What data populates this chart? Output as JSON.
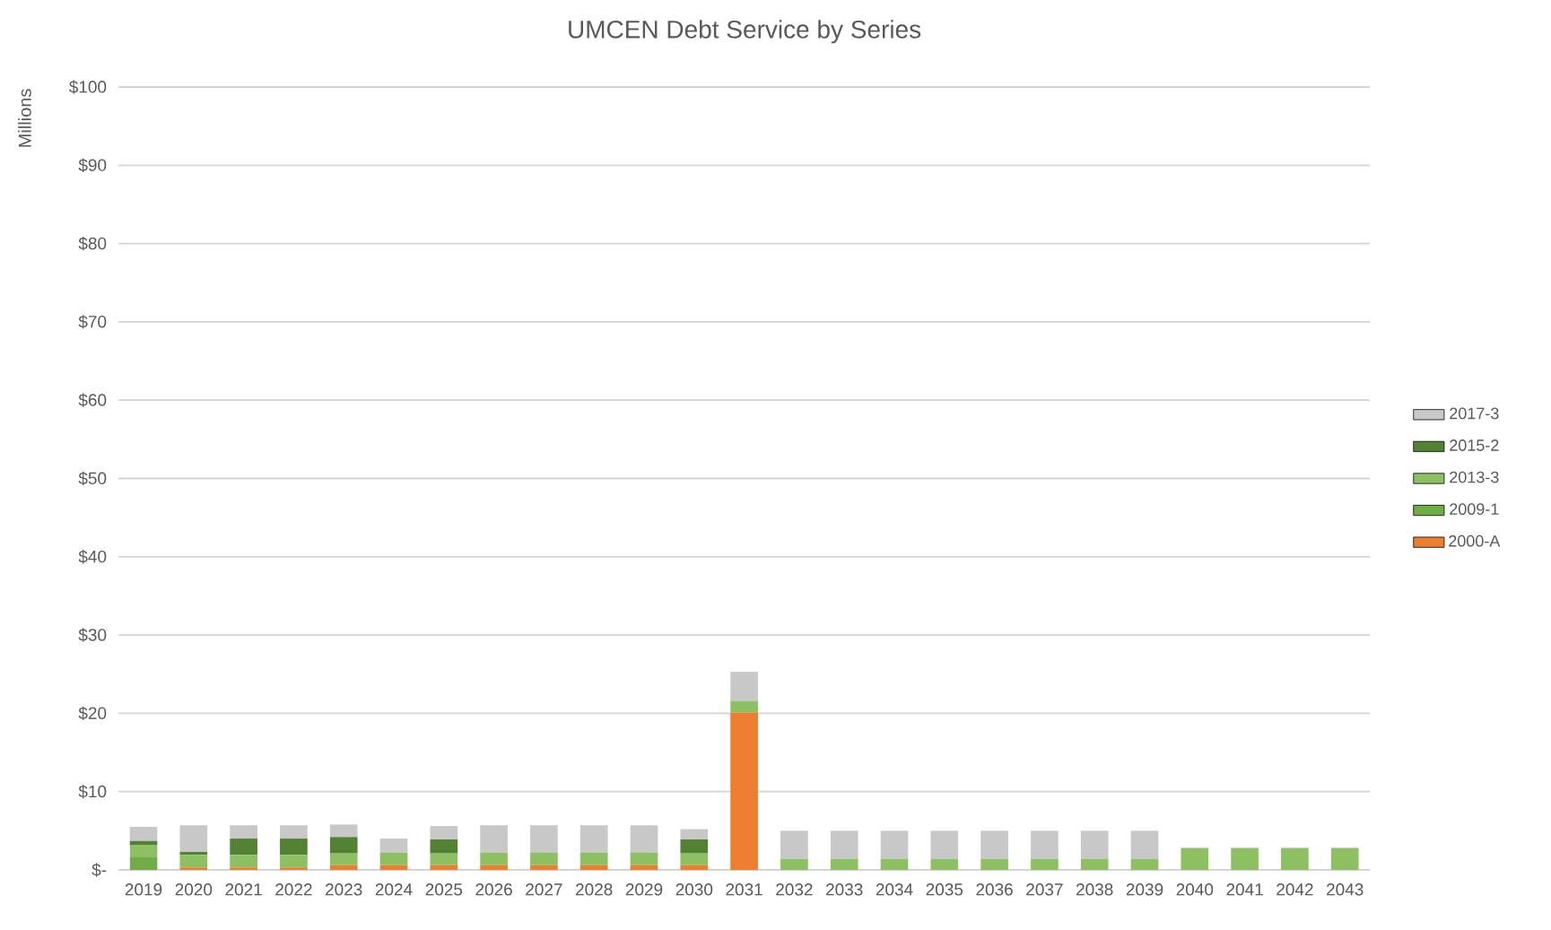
{
  "chart_data": {
    "type": "bar",
    "stacked": true,
    "title": "UMCEN Debt Service by Series",
    "ylabel": "Millions",
    "categories": [
      "2019",
      "2020",
      "2021",
      "2022",
      "2023",
      "2024",
      "2025",
      "2026",
      "2027",
      "2028",
      "2029",
      "2030",
      "2031",
      "2032",
      "2033",
      "2034",
      "2035",
      "2036",
      "2037",
      "2038",
      "2039",
      "2040",
      "2041",
      "2042",
      "2043"
    ],
    "series": [
      {
        "name": "2000-A",
        "color": "#ed7d31",
        "values": [
          0,
          0.3,
          0.3,
          0.3,
          0.6,
          0.6,
          0.6,
          0.6,
          0.6,
          0.6,
          0.6,
          0.6,
          20.1,
          0,
          0,
          0,
          0,
          0,
          0,
          0,
          0,
          0,
          0,
          0,
          0
        ]
      },
      {
        "name": "2009-1",
        "color": "#70ad47",
        "values": [
          1.7,
          0,
          0,
          0,
          0,
          0,
          0,
          0,
          0,
          0,
          0,
          0,
          0,
          0,
          0,
          0,
          0,
          0,
          0,
          0,
          0,
          0,
          0,
          0,
          0
        ]
      },
      {
        "name": "2013-3",
        "color": "#8dc063",
        "values": [
          1.5,
          1.6,
          1.6,
          1.6,
          1.5,
          1.6,
          1.5,
          1.6,
          1.6,
          1.6,
          1.6,
          1.5,
          1.5,
          1.4,
          1.4,
          1.4,
          1.4,
          1.4,
          1.4,
          1.4,
          1.4,
          2.8,
          2.8,
          2.8,
          2.8
        ]
      },
      {
        "name": "2015-2",
        "color": "#548235",
        "values": [
          0.5,
          0.4,
          2.1,
          2.1,
          2.1,
          0,
          1.8,
          0,
          0,
          0,
          0,
          1.8,
          0,
          0,
          0,
          0,
          0,
          0,
          0,
          0,
          0,
          0,
          0,
          0,
          0
        ]
      },
      {
        "name": "2017-3",
        "color": "#c8c8c8",
        "values": [
          1.8,
          3.4,
          1.7,
          1.7,
          1.6,
          1.8,
          1.7,
          3.5,
          3.5,
          3.5,
          3.5,
          1.3,
          3.7,
          3.6,
          3.6,
          3.6,
          3.6,
          3.6,
          3.6,
          3.6,
          3.6,
          0,
          0,
          0,
          0
        ]
      }
    ],
    "ylim": [
      0,
      100
    ],
    "yticks": [
      {
        "value": 0,
        "label": "$-"
      },
      {
        "value": 10,
        "label": "$10"
      },
      {
        "value": 20,
        "label": "$20"
      },
      {
        "value": 30,
        "label": "$30"
      },
      {
        "value": 40,
        "label": "$40"
      },
      {
        "value": 50,
        "label": "$50"
      },
      {
        "value": 60,
        "label": "$60"
      },
      {
        "value": 70,
        "label": "$70"
      },
      {
        "value": 80,
        "label": "$80"
      },
      {
        "value": 90,
        "label": "$90"
      },
      {
        "value": 100,
        "label": "$100"
      }
    ],
    "grid": "y",
    "legend": "right"
  }
}
